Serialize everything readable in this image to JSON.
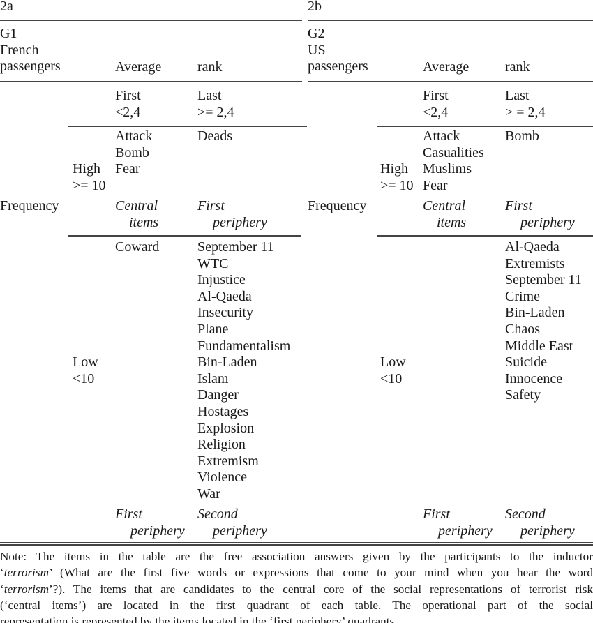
{
  "panels": [
    {
      "label": "2a",
      "group": [
        "G1",
        "French",
        "passengers"
      ],
      "col_header_avg": "Average",
      "col_header_rank": "rank",
      "first": [
        "First",
        "<2,4"
      ],
      "last": [
        "Last",
        ">= 2,4"
      ],
      "row_label": "Frequency",
      "high": [
        "High",
        ">= 10"
      ],
      "low": [
        "Low",
        "<10"
      ],
      "q1": [
        "Attack",
        "Bomb",
        "Fear"
      ],
      "q2": [
        "Deads"
      ],
      "q1_caption": [
        "Central",
        "items"
      ],
      "q2_caption": [
        "First",
        "periphery"
      ],
      "q3": [
        "Coward"
      ],
      "q4": [
        "September 11",
        "WTC",
        "Injustice",
        "Al-Qaeda",
        "Insecurity",
        "Plane",
        "Fundamentalism",
        "Bin-Laden",
        "Islam",
        "Danger",
        "Hostages",
        "Explosion",
        "Religion",
        "Extremism",
        "Violence",
        "War"
      ],
      "q3_caption": [
        "First",
        "periphery"
      ],
      "q4_caption": [
        "Second",
        "periphery"
      ]
    },
    {
      "label": "2b",
      "group": [
        "G2",
        "US",
        "passengers"
      ],
      "col_header_avg": "Average",
      "col_header_rank": "rank",
      "first": [
        "First",
        "<2,4"
      ],
      "last": [
        "Last",
        "> = 2,4"
      ],
      "row_label": "Frequency",
      "high": [
        "High",
        ">= 10"
      ],
      "low": [
        "Low",
        "<10"
      ],
      "q1": [
        "Attack",
        "Casualities",
        "Muslims",
        "Fear"
      ],
      "q2": [
        "Bomb"
      ],
      "q1_caption": [
        "Central",
        "items"
      ],
      "q2_caption": [
        "First",
        "periphery"
      ],
      "q3": [],
      "q4": [
        "Al-Qaeda",
        "Extremists",
        "September 11",
        "Crime",
        "Bin-Laden",
        "Chaos",
        "Middle East",
        "Suicide",
        "Innocence",
        "Safety"
      ],
      "q3_caption": [
        "First",
        "periphery"
      ],
      "q4_caption": [
        "Second",
        "periphery"
      ]
    }
  ],
  "note": [
    [
      {
        "t": "Note: The items in the table are the free association answers given by the participants to the inductor"
      }
    ],
    [
      {
        "t": "‘"
      },
      {
        "t": "terrorism",
        "i": true
      },
      {
        "t": "’ (What are the first five words or expressions that come to your mind when you hear the word"
      }
    ],
    [
      {
        "t": "‘"
      },
      {
        "t": "terrorism",
        "i": true
      },
      {
        "t": "’?). The items that are candidates to the central core of the social representations of terrorist risk"
      }
    ],
    [
      {
        "t": "(‘central items’) are located in the first quadrant of each table. The operational part of the social"
      }
    ],
    [
      {
        "t": "representation is represented by the items located in the ‘first periphery’ quadrants."
      }
    ]
  ]
}
